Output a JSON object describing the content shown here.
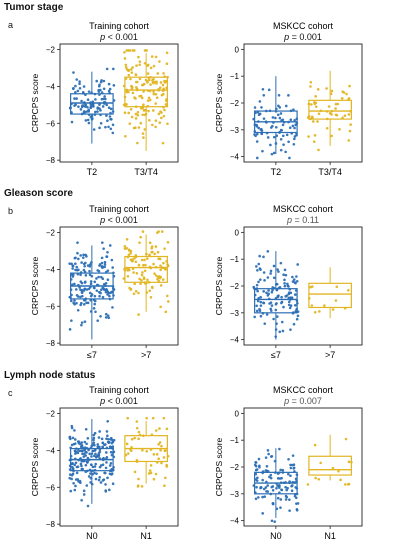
{
  "colors": {
    "blue": "#2c6fb5",
    "gold": "#e2b523",
    "frame": "#222222"
  },
  "sections": [
    {
      "title": "Tumor stage",
      "letter": "a",
      "panels": [
        {
          "title": "Training cohort",
          "p_label": "p",
          "p_text": " < 0.001",
          "p_gray": false,
          "ylabel": "CRPCPS score",
          "yticks": [
            -2,
            -4,
            -6,
            -8
          ],
          "ylim": [
            -8.1,
            -1.7
          ],
          "groups": [
            {
              "label": "T2",
              "color": "blue",
              "q1": -5.5,
              "median": -4.9,
              "q3": -4.4,
              "wlo": -7.1,
              "whi": -3.2,
              "n": 120
            },
            {
              "label": "T3/T4",
              "color": "gold",
              "q1": -5.1,
              "median": -4.2,
              "q3": -3.5,
              "wlo": -7.5,
              "whi": -2.2,
              "n": 160
            }
          ]
        },
        {
          "title": "MSKCC cohort",
          "p_label": "p",
          "p_text": " = 0.001",
          "p_gray": false,
          "ylabel": "CRPCPS score",
          "yticks": [
            0,
            -1,
            -2,
            -3,
            -4
          ],
          "ylim": [
            -4.2,
            0.2
          ],
          "groups": [
            {
              "label": "T2",
              "color": "blue",
              "q1": -3.1,
              "median": -2.7,
              "q3": -2.3,
              "wlo": -3.9,
              "whi": -1.0,
              "n": 90
            },
            {
              "label": "T3/T4",
              "color": "gold",
              "q1": -2.6,
              "median": -2.3,
              "q3": -1.9,
              "wlo": -3.6,
              "whi": -0.8,
              "n": 55
            }
          ]
        }
      ]
    },
    {
      "title": "Gleason score",
      "letter": "b",
      "panels": [
        {
          "title": "Training cohort",
          "p_label": "p",
          "p_text": " < 0.001",
          "p_gray": false,
          "ylabel": "CRPCPS score",
          "yticks": [
            -2,
            -4,
            -6,
            -8
          ],
          "ylim": [
            -8.1,
            -1.7
          ],
          "groups": [
            {
              "label": "≤7",
              "color": "blue",
              "q1": -5.6,
              "median": -4.9,
              "q3": -4.2,
              "wlo": -7.8,
              "whi": -2.7,
              "n": 170
            },
            {
              "label": ">7",
              "color": "gold",
              "q1": -4.7,
              "median": -3.9,
              "q3": -3.3,
              "wlo": -6.3,
              "whi": -2.1,
              "n": 110
            }
          ]
        },
        {
          "title": "MSKCC cohort",
          "p_label": "p",
          "p_text": " = 0.11",
          "p_gray": true,
          "ylabel": "CRPCPS score",
          "yticks": [
            0,
            -1,
            -2,
            -3,
            -4
          ],
          "ylim": [
            -4.2,
            0.2
          ],
          "groups": [
            {
              "label": "≤7",
              "color": "blue",
              "q1": -3.0,
              "median": -2.5,
              "q3": -2.1,
              "wlo": -4.0,
              "whi": -0.7,
              "n": 130
            },
            {
              "label": ">7",
              "color": "gold",
              "q1": -2.8,
              "median": -2.3,
              "q3": -1.9,
              "wlo": -3.2,
              "whi": -1.3,
              "n": 12
            }
          ]
        }
      ]
    },
    {
      "title": "Lymph node status",
      "letter": "c",
      "panels": [
        {
          "title": "Training cohort",
          "p_label": "p",
          "p_text": " < 0.001",
          "p_gray": false,
          "ylabel": "CRPCPS score",
          "yticks": [
            -2,
            -4,
            -6,
            -8
          ],
          "ylim": [
            -8.1,
            -1.7
          ],
          "groups": [
            {
              "label": "N0",
              "color": "blue",
              "q1": -5.1,
              "median": -4.5,
              "q3": -3.9,
              "wlo": -6.9,
              "whi": -2.3,
              "n": 220
            },
            {
              "label": "N1",
              "color": "gold",
              "q1": -4.6,
              "median": -3.9,
              "q3": -3.2,
              "wlo": -5.8,
              "whi": -2.4,
              "n": 55
            }
          ]
        },
        {
          "title": "MSKCC cohort",
          "p_label": "p",
          "p_text": " = 0.007",
          "p_gray": true,
          "ylabel": "CRPCPS score",
          "yticks": [
            0,
            -1,
            -2,
            -3,
            -4
          ],
          "ylim": [
            -4.2,
            0.2
          ],
          "groups": [
            {
              "label": "N0",
              "color": "blue",
              "q1": -3.0,
              "median": -2.6,
              "q3": -2.2,
              "wlo": -3.9,
              "whi": -1.3,
              "n": 120
            },
            {
              "label": "N1",
              "color": "gold",
              "q1": -2.3,
              "median": -2.1,
              "q3": -1.6,
              "wlo": -2.5,
              "whi": -0.8,
              "n": 14
            }
          ]
        }
      ]
    }
  ],
  "chart_data": [
    {
      "type": "box",
      "title": "Training cohort",
      "ylabel": "CRPCPS score",
      "categories": [
        "T2",
        "T3/T4"
      ],
      "medians": [
        -4.9,
        -4.2
      ],
      "ylim": [
        -8,
        -2
      ]
    },
    {
      "type": "box",
      "title": "MSKCC cohort",
      "ylabel": "CRPCPS score",
      "categories": [
        "T2",
        "T3/T4"
      ],
      "medians": [
        -2.7,
        -2.3
      ],
      "ylim": [
        -4,
        0
      ]
    },
    {
      "type": "box",
      "title": "Training cohort",
      "ylabel": "CRPCPS score",
      "categories": [
        "≤7",
        ">7"
      ],
      "medians": [
        -4.9,
        -3.9
      ],
      "ylim": [
        -8,
        -2
      ]
    },
    {
      "type": "box",
      "title": "MSKCC cohort",
      "ylabel": "CRPCPS score",
      "categories": [
        "≤7",
        ">7"
      ],
      "medians": [
        -2.5,
        -2.3
      ],
      "ylim": [
        -4,
        0
      ]
    },
    {
      "type": "box",
      "title": "Training cohort",
      "ylabel": "CRPCPS score",
      "categories": [
        "N0",
        "N1"
      ],
      "medians": [
        -4.5,
        -3.9
      ],
      "ylim": [
        -8,
        -2
      ]
    },
    {
      "type": "box",
      "title": "MSKCC cohort",
      "ylabel": "CRPCPS score",
      "categories": [
        "N0",
        "N1"
      ],
      "medians": [
        -2.6,
        -2.1
      ],
      "ylim": [
        -4,
        0
      ]
    }
  ]
}
